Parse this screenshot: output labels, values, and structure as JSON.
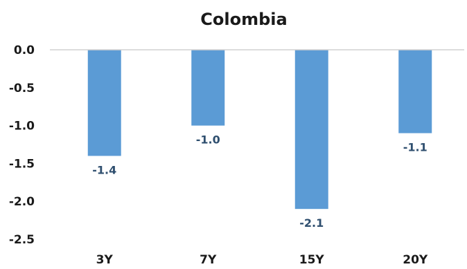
{
  "chart_data": {
    "type": "bar",
    "title": "Colombia",
    "categories": [
      "3Y",
      "7Y",
      "15Y",
      "20Y"
    ],
    "values": [
      -1.4,
      -1.0,
      -2.1,
      -1.1
    ],
    "data_labels": [
      "-1.4",
      "-1.0",
      "-2.1",
      "-1.1"
    ],
    "y_ticks": [
      "0.0",
      "-0.5",
      "-1.0",
      "-1.5",
      "-2.0",
      "-2.5"
    ],
    "y_tick_values": [
      0.0,
      -0.5,
      -1.0,
      -1.5,
      -2.0,
      -2.5
    ],
    "ylim": [
      -2.5,
      0.0
    ],
    "xlabel": "",
    "ylabel": "",
    "grid": false,
    "legend": "none",
    "bar_color": "#5b9bd5",
    "axis_color": "#d0d0d0",
    "label_color": "#2f4f6f"
  }
}
